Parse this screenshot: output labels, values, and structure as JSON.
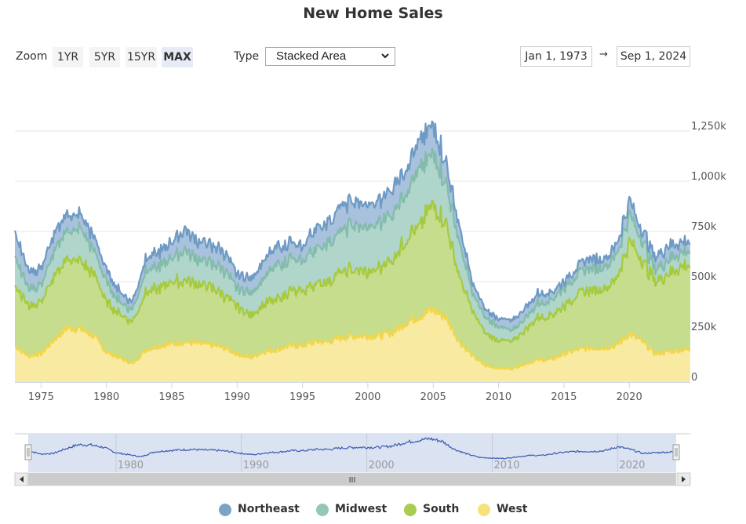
{
  "page": {
    "title": "New Home Sales"
  },
  "toolbar": {
    "zoom_label": "Zoom",
    "zoom_buttons": [
      "1YR",
      "5YR",
      "15YR",
      "MAX"
    ],
    "zoom_active": "MAX",
    "type_label": "Type",
    "type_value": "Stacked Area",
    "type_chevron": "chevron-down",
    "date_from": "Jan 1, 1973",
    "date_arrow": "→",
    "date_to": "Sep 1, 2024"
  },
  "navigator": {
    "tick_labels": [
      "1980",
      "1990",
      "2000",
      "2010",
      "2020"
    ],
    "scroll_grip": "III"
  },
  "colors": {
    "Northeast": "#7aa3c8",
    "Midwest": "#94c7b8",
    "South": "#a9cd4f",
    "West": "#f5e27a",
    "navigator_line": "#3a5bb0",
    "navigator_fill": "#dbe3f2"
  },
  "chart_data": {
    "type": "area",
    "stacked": true,
    "title": "New Home Sales",
    "xlabel": "",
    "ylabel": "",
    "x": [
      1973,
      1974,
      1975,
      1976,
      1977,
      1978,
      1979,
      1980,
      1981,
      1982,
      1983,
      1984,
      1985,
      1986,
      1987,
      1988,
      1989,
      1990,
      1991,
      1992,
      1993,
      1994,
      1995,
      1996,
      1997,
      1998,
      1999,
      2000,
      2001,
      2002,
      2003,
      2004,
      2005,
      2006,
      2007,
      2008,
      2009,
      2010,
      2011,
      2012,
      2013,
      2014,
      2015,
      2016,
      2017,
      2018,
      2019,
      2020,
      2021,
      2022,
      2023,
      2024
    ],
    "xlim": [
      1973,
      2024.67
    ],
    "x_ticks": [
      "1975",
      "1980",
      "1985",
      "1990",
      "1995",
      "2000",
      "2005",
      "2010",
      "2015",
      "2020"
    ],
    "ylim": [
      0,
      1400
    ],
    "y_ticks": [
      "0",
      "250k",
      "500k",
      "750k",
      "1,000k",
      "1,250k"
    ],
    "y_tick_values": [
      0,
      250,
      500,
      750,
      1000,
      1250
    ],
    "y_unit": "thousands",
    "grid": true,
    "legend_position": "bottom",
    "series": [
      {
        "name": "West",
        "values": [
          180,
          130,
          140,
          210,
          270,
          265,
          230,
          150,
          120,
          90,
          160,
          180,
          190,
          200,
          190,
          185,
          170,
          140,
          120,
          150,
          160,
          180,
          180,
          200,
          200,
          220,
          230,
          230,
          230,
          250,
          300,
          330,
          360,
          320,
          200,
          130,
          80,
          70,
          65,
          90,
          110,
          110,
          140,
          160,
          170,
          170,
          180,
          240,
          200,
          140,
          150,
          160
        ]
      },
      {
        "name": "South",
        "values": [
          320,
          250,
          260,
          310,
          350,
          335,
          310,
          250,
          220,
          210,
          290,
          290,
          310,
          310,
          290,
          285,
          260,
          240,
          210,
          240,
          250,
          270,
          270,
          290,
          300,
          330,
          330,
          320,
          340,
          370,
          430,
          460,
          520,
          470,
          330,
          220,
          160,
          140,
          135,
          170,
          210,
          220,
          240,
          270,
          290,
          300,
          330,
          460,
          400,
          360,
          390,
          420
        ]
      },
      {
        "name": "Midwest",
        "values": [
          140,
          90,
          80,
          130,
          140,
          160,
          120,
          100,
          60,
          60,
          110,
          110,
          120,
          150,
          120,
          120,
          130,
          90,
          110,
          130,
          170,
          160,
          150,
          170,
          190,
          210,
          220,
          220,
          230,
          230,
          240,
          270,
          260,
          200,
          170,
          90,
          80,
          70,
          50,
          60,
          70,
          80,
          90,
          100,
          110,
          110,
          120,
          130,
          100,
          60,
          70,
          70
        ]
      },
      {
        "name": "Northeast",
        "values": [
          120,
          90,
          80,
          90,
          80,
          70,
          70,
          60,
          50,
          40,
          60,
          70,
          80,
          100,
          90,
          90,
          90,
          70,
          70,
          90,
          90,
          80,
          70,
          100,
          110,
          120,
          120,
          110,
          110,
          130,
          120,
          140,
          140,
          100,
          80,
          50,
          40,
          40,
          50,
          50,
          50,
          40,
          30,
          40,
          50,
          40,
          50,
          70,
          50,
          60,
          70,
          50
        ]
      }
    ]
  }
}
